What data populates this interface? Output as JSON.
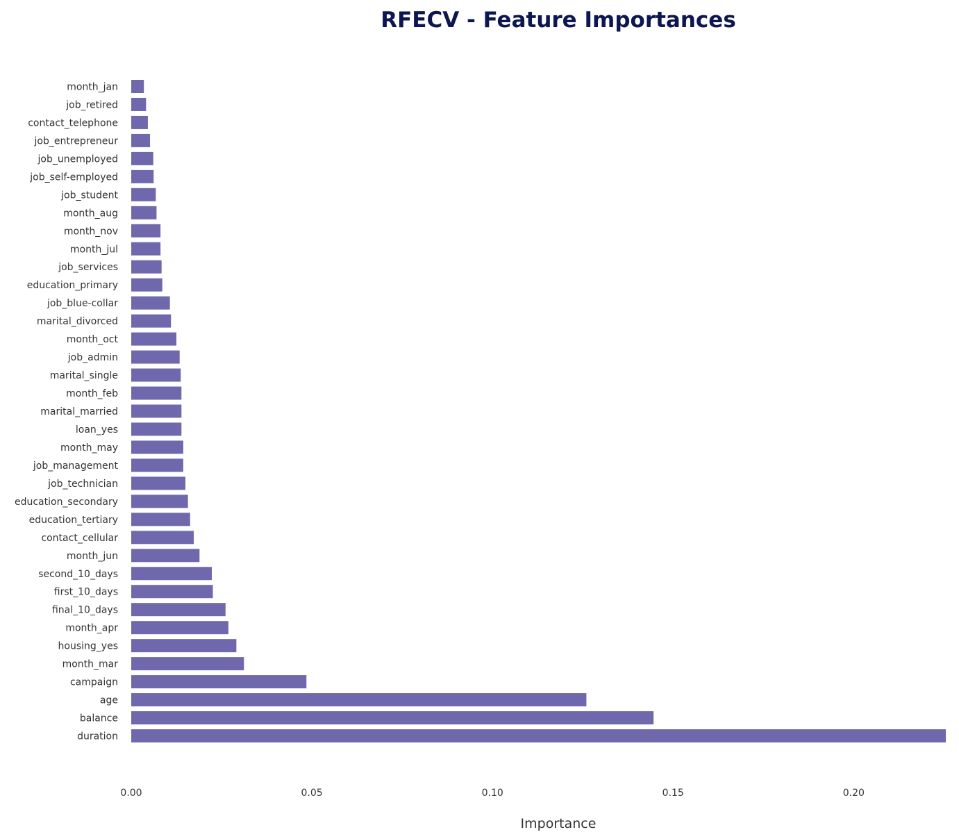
{
  "chart_data": {
    "type": "bar",
    "orientation": "horizontal",
    "title": "RFECV - Feature Importances",
    "xlabel": "Importance",
    "ylabel": "",
    "xlim": [
      0,
      0.2255
    ],
    "xticks": [
      0.0,
      0.05,
      0.1,
      0.15,
      0.2
    ],
    "xtick_labels": [
      "0.00",
      "0.05",
      "0.10",
      "0.15",
      "0.20"
    ],
    "grid": false,
    "legend": "none",
    "colors": {
      "bar": "#7068ac",
      "title": "#0c1650",
      "text": "#333333"
    },
    "categories": [
      "month_jan",
      "job_retired",
      "contact_telephone",
      "job_entrepreneur",
      "job_unemployed",
      "job_self-employed",
      "job_student",
      "month_aug",
      "month_nov",
      "month_jul",
      "job_services",
      "education_primary",
      "job_blue-collar",
      "marital_divorced",
      "month_oct",
      "job_admin",
      "marital_single",
      "month_feb",
      "marital_married",
      "loan_yes",
      "month_may",
      "job_management",
      "job_technician",
      "education_secondary",
      "education_tertiary",
      "contact_cellular",
      "month_jun",
      "second_10_days",
      "first_10_days",
      "final_10_days",
      "month_apr",
      "housing_yes",
      "month_mar",
      "campaign",
      "age",
      "balance",
      "duration"
    ],
    "values": [
      0.0035,
      0.0041,
      0.0046,
      0.0052,
      0.0061,
      0.0062,
      0.0068,
      0.007,
      0.0081,
      0.0081,
      0.0084,
      0.0086,
      0.0107,
      0.011,
      0.0125,
      0.0134,
      0.0137,
      0.0139,
      0.0139,
      0.0139,
      0.0144,
      0.0144,
      0.015,
      0.0157,
      0.0163,
      0.0173,
      0.0189,
      0.0223,
      0.0226,
      0.0261,
      0.0269,
      0.0291,
      0.0312,
      0.0485,
      0.126,
      0.1446,
      0.2255
    ]
  }
}
